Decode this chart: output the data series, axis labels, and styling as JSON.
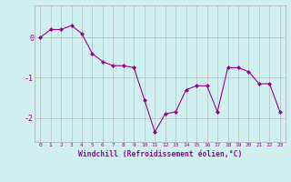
{
  "x": [
    0,
    1,
    2,
    3,
    4,
    5,
    6,
    7,
    8,
    9,
    10,
    11,
    12,
    13,
    14,
    15,
    16,
    17,
    18,
    19,
    20,
    21,
    22,
    23
  ],
  "y": [
    0.0,
    0.2,
    0.2,
    0.3,
    0.1,
    -0.4,
    -0.6,
    -0.7,
    -0.7,
    -0.75,
    -1.55,
    -2.35,
    -1.9,
    -1.85,
    -1.3,
    -1.2,
    -1.2,
    -1.85,
    -0.75,
    -0.75,
    -0.85,
    -1.15,
    -1.15,
    -1.85
  ],
  "xtick_labels": [
    "0",
    "1",
    "2",
    "3",
    "4",
    "5",
    "6",
    "7",
    "8",
    "9",
    "10",
    "11",
    "12",
    "13",
    "14",
    "15",
    "16",
    "17",
    "18",
    "19",
    "20",
    "21",
    "22",
    "23"
  ],
  "line_color": "#990099",
  "marker": "D",
  "marker_size": 2.0,
  "bg_color": "#d0f0f0",
  "grid_color": "#aaaaaa",
  "xlabel": "Windchill (Refroidissement éolien,°C)",
  "xlabel_color": "#990099",
  "tick_color": "#990099",
  "ylim": [
    -2.6,
    0.8
  ],
  "yticks": [
    -2,
    -1,
    0
  ],
  "ytick_labels": [
    "-2",
    "-1",
    "0"
  ],
  "xlim": [
    -0.5,
    23.5
  ]
}
